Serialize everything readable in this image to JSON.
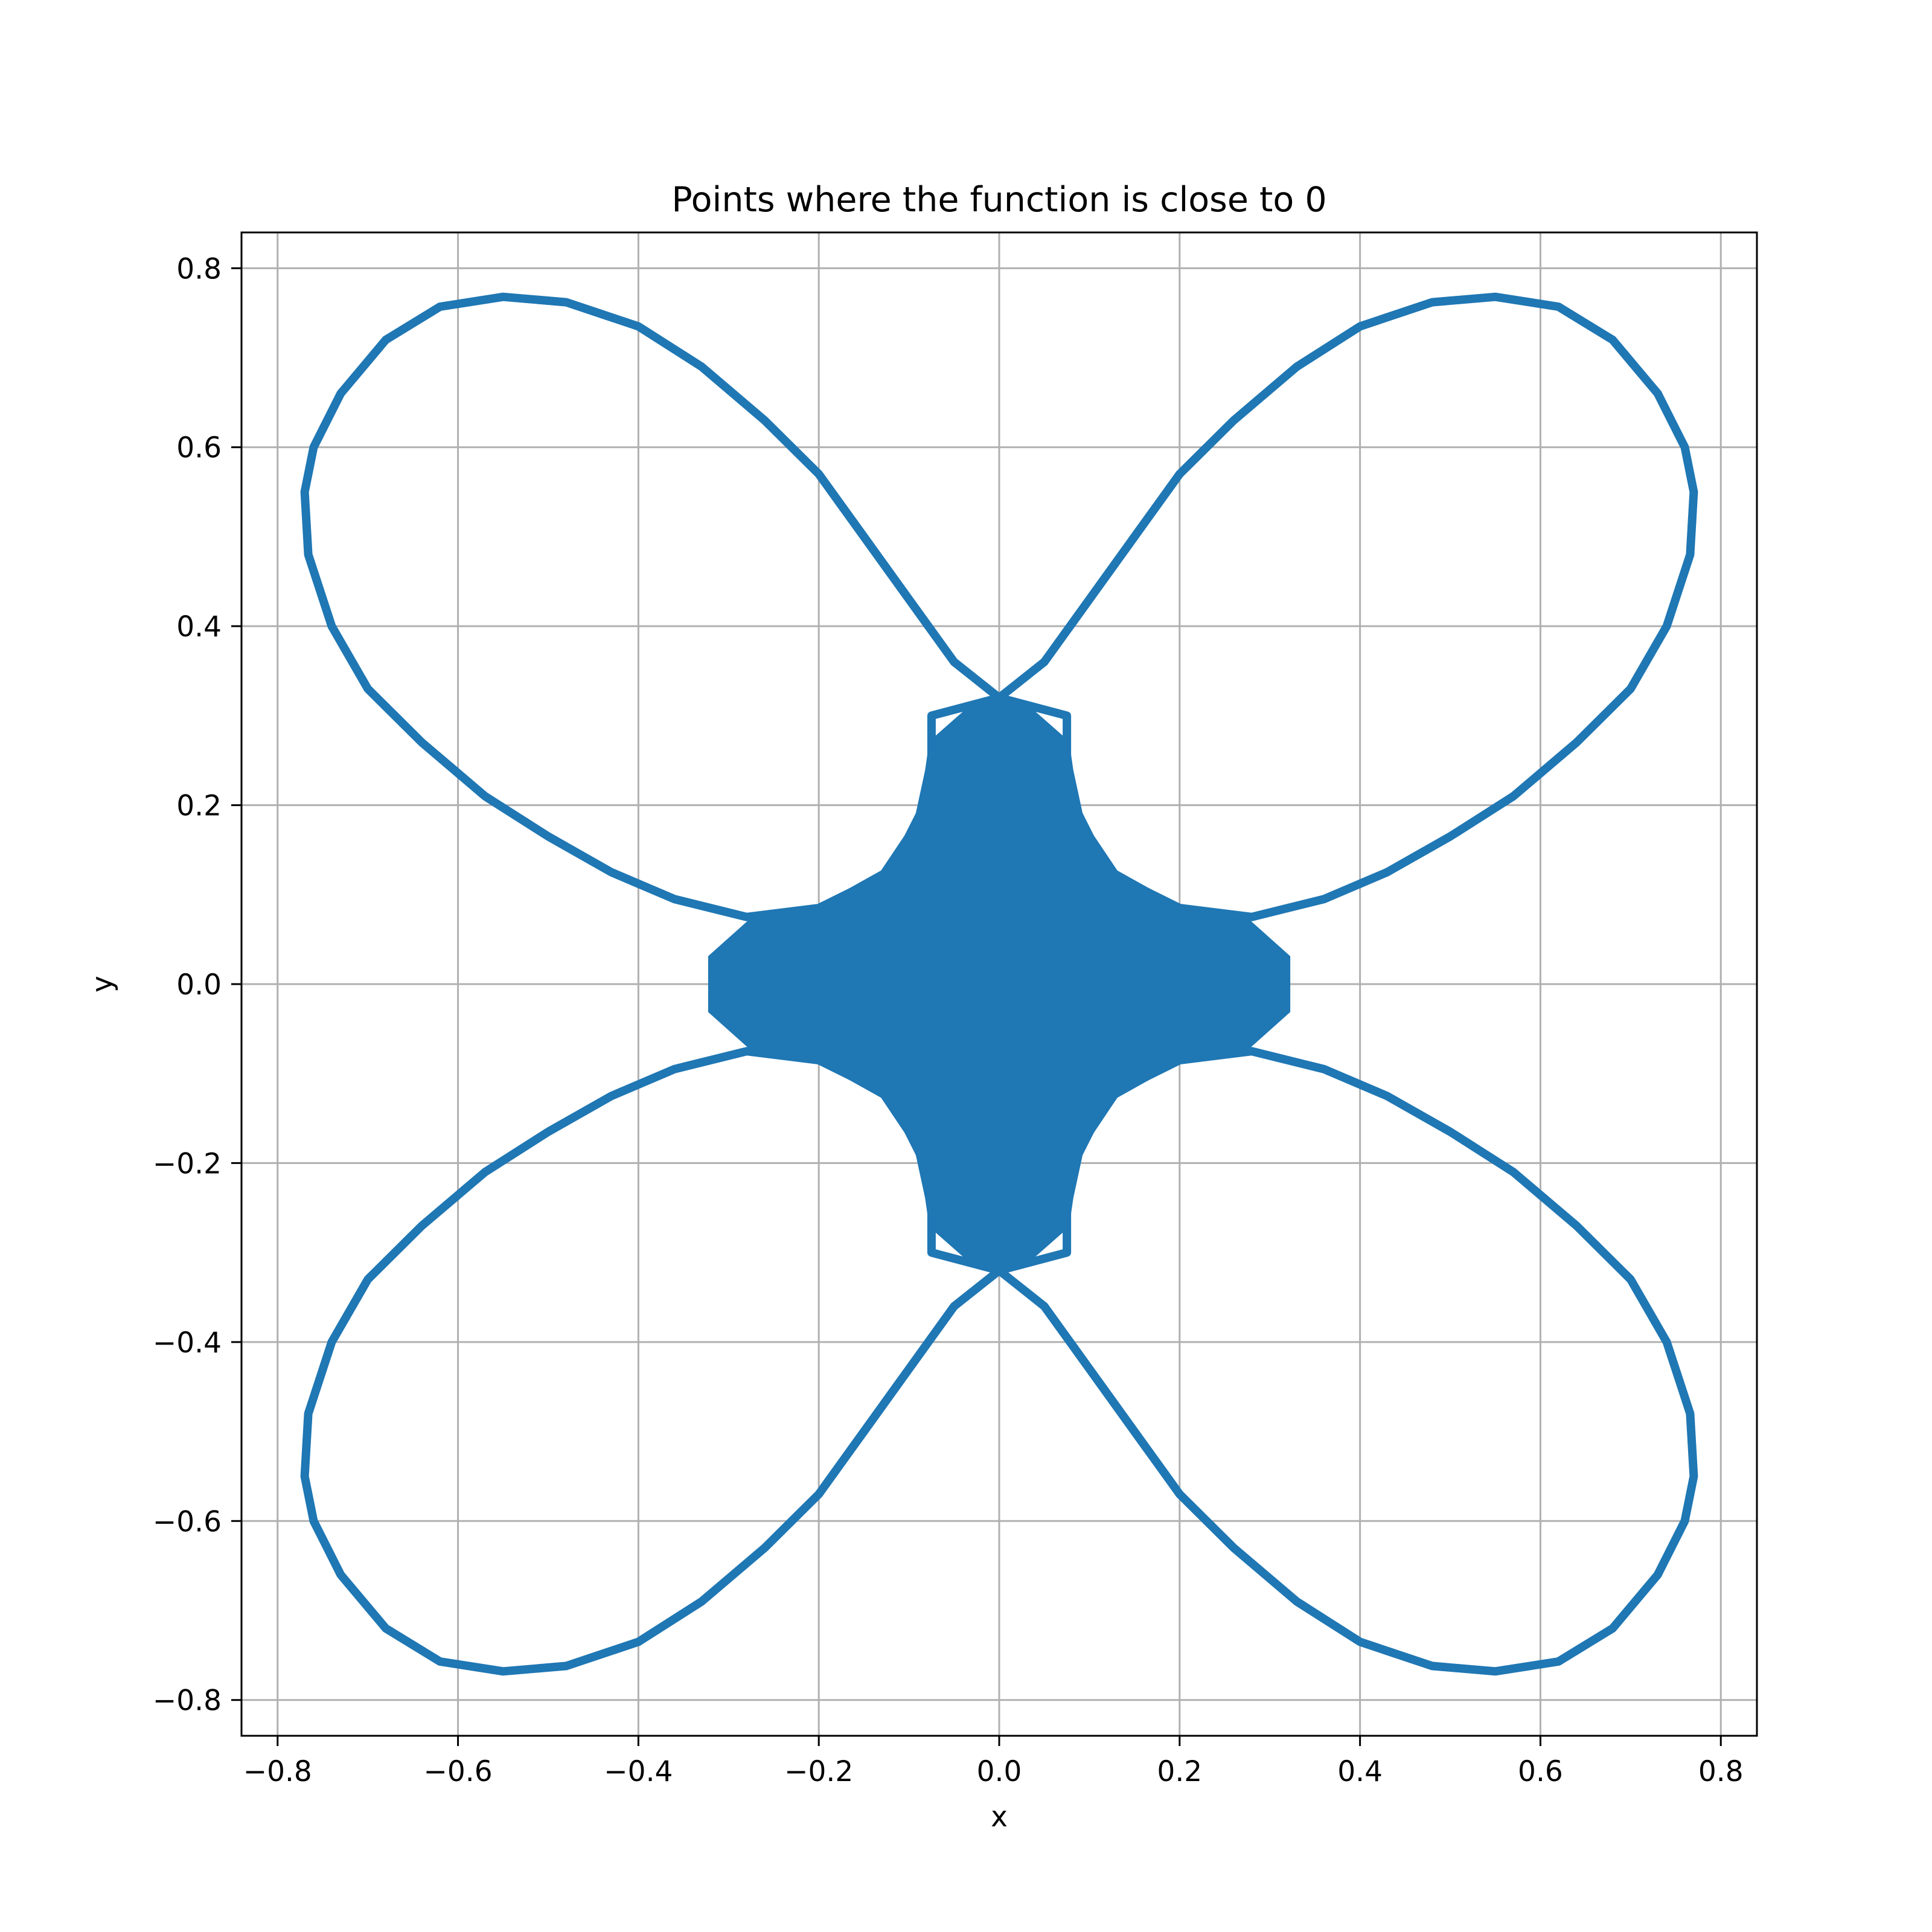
{
  "chart_data": {
    "type": "scatter",
    "title": "Points where the function is close to 0",
    "xlabel": "x",
    "ylabel": "y",
    "xlim": [
      -0.84,
      0.84
    ],
    "ylim": [
      -0.84,
      0.84
    ],
    "xticks": [
      -0.8,
      -0.6,
      -0.4,
      -0.2,
      0.0,
      0.2,
      0.4,
      0.6,
      0.8
    ],
    "yticks": [
      -0.8,
      -0.6,
      -0.4,
      -0.2,
      0.0,
      0.2,
      0.4,
      0.6,
      0.8
    ],
    "xtick_labels": [
      "−0.8",
      "−0.6",
      "−0.4",
      "−0.2",
      "0.0",
      "0.2",
      "0.4",
      "0.6",
      "0.8"
    ],
    "ytick_labels": [
      "−0.8",
      "−0.6",
      "−0.4",
      "−0.2",
      "0.0",
      "0.2",
      "0.4",
      "0.6",
      "0.8"
    ],
    "grid": true,
    "series": [
      {
        "color": "#1f77b4",
        "shape": "four-lobed curve with filled central region",
        "lobe_outline_points": [
          [
            0.0,
            0.32
          ],
          [
            0.05,
            0.36
          ],
          [
            0.1,
            0.43
          ],
          [
            0.15,
            0.5
          ],
          [
            0.2,
            0.57
          ],
          [
            0.26,
            0.63
          ],
          [
            0.33,
            0.69
          ],
          [
            0.4,
            0.735
          ],
          [
            0.48,
            0.762
          ],
          [
            0.55,
            0.768
          ],
          [
            0.62,
            0.757
          ],
          [
            0.68,
            0.72
          ],
          [
            0.73,
            0.66
          ],
          [
            0.76,
            0.6
          ],
          [
            0.77,
            0.55
          ],
          [
            0.766,
            0.48
          ],
          [
            0.74,
            0.4
          ],
          [
            0.7,
            0.33
          ],
          [
            0.64,
            0.27
          ],
          [
            0.57,
            0.21
          ],
          [
            0.5,
            0.165
          ],
          [
            0.43,
            0.125
          ],
          [
            0.36,
            0.095
          ],
          [
            0.28,
            0.075
          ],
          [
            0.2,
            0.085
          ],
          [
            0.13,
            0.12
          ],
          [
            0.09,
            0.18
          ],
          [
            0.075,
            0.25
          ],
          [
            0.075,
            0.3
          ]
        ],
        "central_region_points": [
          [
            0.0,
            0.32
          ],
          [
            0.03,
            0.31
          ],
          [
            0.075,
            0.27
          ],
          [
            0.085,
            0.2
          ],
          [
            0.12,
            0.13
          ],
          [
            0.2,
            0.085
          ],
          [
            0.27,
            0.075
          ],
          [
            0.32,
            0.03
          ],
          [
            0.32,
            0.0
          ]
        ]
      }
    ]
  }
}
